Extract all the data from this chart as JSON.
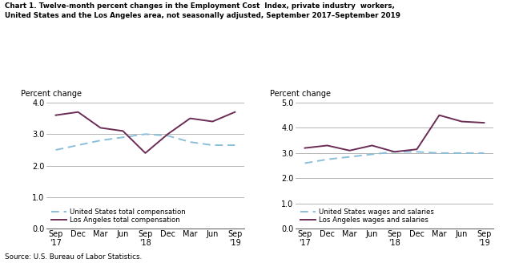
{
  "title_line1": "Chart 1. Twelve-month percent changes in the Employment Cost  Index, private industry  workers,",
  "title_line2": "United States and the Los Angeles area, not seasonally adjusted, September 2017–September 2019",
  "source": "Source: U.S. Bureau of Labor Statistics.",
  "left_ylabel": "Percent change",
  "right_ylabel": "Percent change",
  "left_ylim": [
    0.0,
    4.0
  ],
  "right_ylim": [
    0.0,
    5.0
  ],
  "left_yticks": [
    0.0,
    1.0,
    2.0,
    3.0,
    4.0
  ],
  "right_yticks": [
    0.0,
    1.0,
    2.0,
    3.0,
    4.0,
    5.0
  ],
  "us_total_comp": [
    2.5,
    2.65,
    2.8,
    2.9,
    3.0,
    2.95,
    2.75,
    2.65,
    2.65
  ],
  "la_total_comp": [
    3.6,
    3.7,
    3.2,
    3.1,
    2.4,
    3.0,
    3.5,
    3.4,
    3.7
  ],
  "us_wages_sal": [
    2.6,
    2.75,
    2.85,
    2.95,
    3.05,
    3.05,
    3.0,
    3.0,
    3.0
  ],
  "la_wages_sal": [
    3.2,
    3.3,
    3.1,
    3.3,
    3.05,
    3.15,
    4.5,
    4.25,
    4.2
  ],
  "us_color": "#8BBFDA",
  "la_color": "#6B2D56",
  "linewidth": 1.4,
  "left_legend_us": "United States total compensation",
  "left_legend_la": "Los Angeles total compensation",
  "right_legend_us": "United States wages and salaries",
  "right_legend_la": "Los Angeles wages and salaries",
  "fig_width": 6.48,
  "fig_height": 3.28,
  "dpi": 100,
  "background_color": "#ffffff",
  "grid_color": "#999999"
}
